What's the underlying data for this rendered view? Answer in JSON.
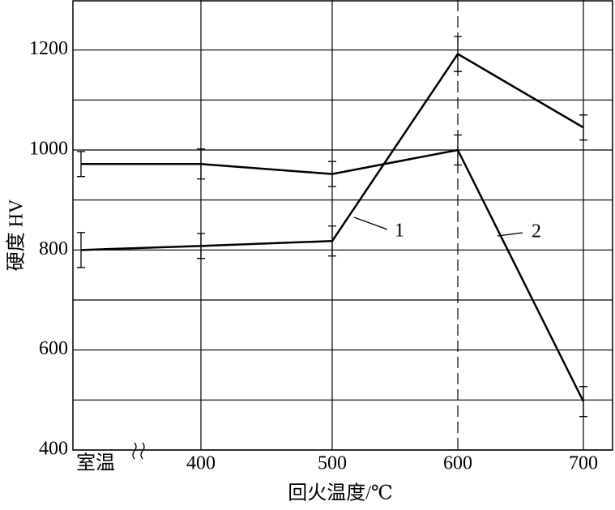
{
  "chart_data": {
    "type": "line",
    "x_label": "回火温度/℃",
    "y_label": "硬度 HV",
    "categories": [
      "室温",
      "400",
      "500",
      "600",
      "700"
    ],
    "series": [
      {
        "name": "1",
        "color": "#000000",
        "values": [
          800,
          808,
          818,
          1192,
          1045
        ],
        "errors": [
          35,
          25,
          30,
          35,
          25
        ]
      },
      {
        "name": "2",
        "color": "#000000",
        "values": [
          972,
          972,
          952,
          1000,
          497
        ],
        "errors": [
          25,
          30,
          25,
          30,
          30
        ]
      }
    ],
    "ylim": [
      400,
      1300
    ],
    "yticks": [
      400,
      600,
      800,
      1000,
      1200
    ],
    "minor_grid": [
      500,
      700,
      900,
      1100
    ],
    "grid": true
  }
}
